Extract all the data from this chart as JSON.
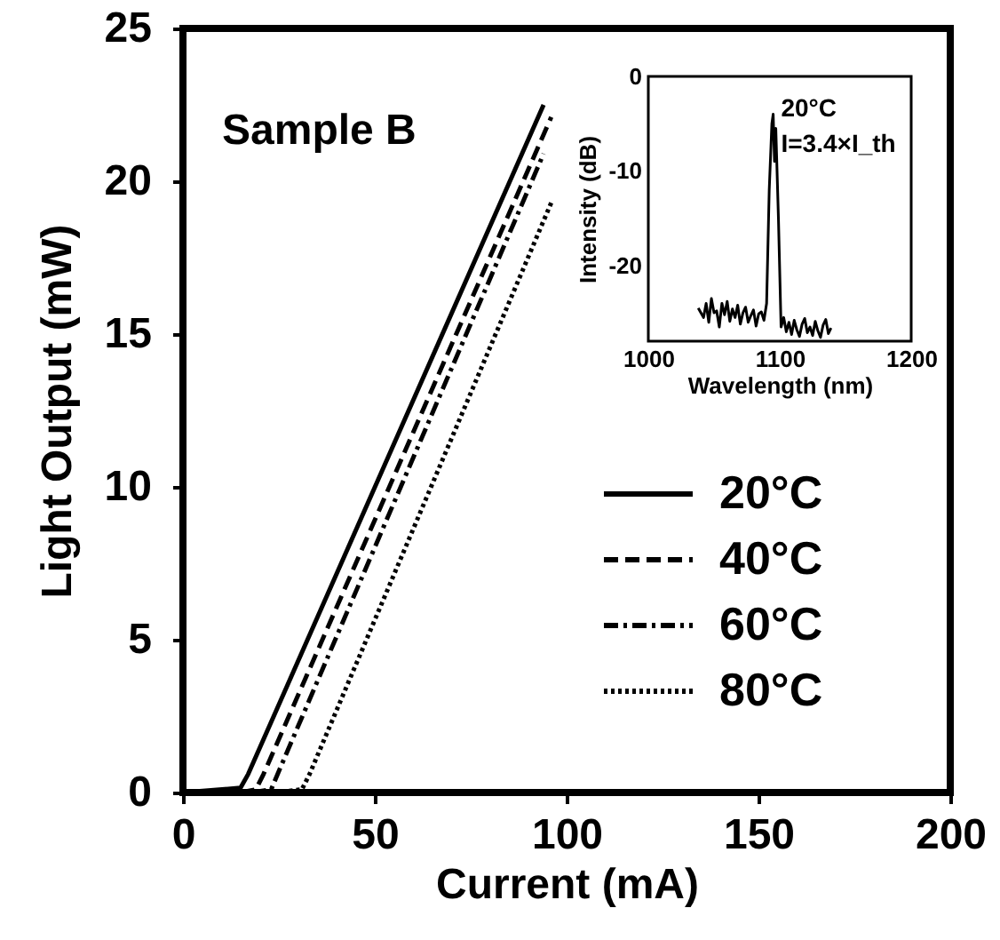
{
  "chart_data": [
    {
      "type": "line",
      "xlabel": "Current (mA)",
      "ylabel": "Light Output (mW)",
      "xlim": [
        0,
        200
      ],
      "ylim": [
        0,
        25
      ],
      "xticks": [
        0,
        50,
        100,
        150,
        200
      ],
      "yticks": [
        0,
        5,
        10,
        15,
        20,
        25
      ],
      "grid": false,
      "legend": "right",
      "marker": "none",
      "annotations": [
        "Sample B"
      ],
      "series": [
        {
          "name": "20°C",
          "color": "#000000",
          "line_style": "solid",
          "x": [
            0,
            15,
            17,
            94
          ],
          "values": [
            0,
            0.15,
            0.6,
            22.5
          ]
        },
        {
          "name": "40°C",
          "color": "#000000",
          "line_style": "dashed",
          "x": [
            15,
            19,
            21,
            96
          ],
          "values": [
            0,
            0.1,
            0.6,
            22.1
          ]
        },
        {
          "name": "60°C",
          "color": "#000000",
          "line_style": "dashdot",
          "x": [
            18,
            23,
            25,
            94
          ],
          "values": [
            0,
            0.1,
            0.7,
            20.9
          ]
        },
        {
          "name": "80°C",
          "color": "#000000",
          "line_style": "dotted",
          "x": [
            24,
            31,
            33,
            96
          ],
          "values": [
            0,
            0.1,
            0.6,
            19.3
          ]
        }
      ]
    },
    {
      "type": "line",
      "xlabel": "Wavelength (nm)",
      "ylabel": "Intensity (dB)",
      "xlim": [
        1000,
        1200
      ],
      "ylim": [
        -28,
        0
      ],
      "xticks": [
        1000,
        1100,
        1200
      ],
      "yticks": [
        0,
        -10,
        -20
      ],
      "grid": false,
      "marker": "none",
      "annotations": [
        {
          "text": "20°C",
          "x": 1101,
          "y": -3.5
        },
        {
          "text": "I=3.4×I_th",
          "x": 1101,
          "y": -7.2
        }
      ],
      "series": [
        {
          "color": "#000000",
          "line_style": "solid",
          "x": [
            1038,
            1040,
            1042,
            1044,
            1046,
            1048,
            1050,
            1052,
            1054,
            1056,
            1058,
            1060,
            1062,
            1064,
            1066,
            1068,
            1070,
            1072,
            1074,
            1076,
            1078,
            1080,
            1082,
            1084,
            1086,
            1088,
            1090,
            1092,
            1094,
            1095,
            1096,
            1097,
            1099,
            1101,
            1103,
            1105,
            1107,
            1109,
            1111,
            1113,
            1115,
            1117,
            1119,
            1121,
            1123,
            1125,
            1127,
            1129,
            1131,
            1133,
            1135,
            1137,
            1139
          ],
          "values": [
            -24.5,
            -25,
            -25.5,
            -24,
            -26,
            -23.5,
            -25,
            -24.8,
            -26.5,
            -24,
            -25.2,
            -23.8,
            -25.9,
            -24.6,
            -25.5,
            -24.2,
            -26.2,
            -25,
            -24.4,
            -26,
            -25.3,
            -24.7,
            -26.4,
            -25.1,
            -24.9,
            -25.8,
            -24,
            -12,
            -5,
            -4,
            -9,
            -5.5,
            -15,
            -26.5,
            -25.5,
            -27,
            -26,
            -27.3,
            -25.8,
            -26.8,
            -27.5,
            -26.2,
            -25.6,
            -27.1,
            -26.5,
            -27.4,
            -25.9,
            -26.9,
            -27.6,
            -26.3,
            -25.7,
            -27.2,
            -26.6
          ]
        }
      ]
    }
  ]
}
